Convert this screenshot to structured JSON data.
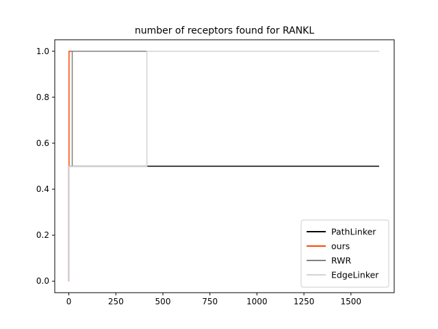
{
  "chart_data": {
    "type": "line",
    "title": "number of receptors found for RANKL",
    "xlabel": "",
    "ylabel": "",
    "xlim": [
      -75,
      1730
    ],
    "ylim": [
      -0.05,
      1.05
    ],
    "xticks": [
      0,
      250,
      500,
      750,
      1000,
      1250,
      1500
    ],
    "yticks": [
      0.0,
      0.2,
      0.4,
      0.6,
      0.8,
      1.0
    ],
    "xtick_labels": [
      "0",
      "250",
      "500",
      "750",
      "1000",
      "1250",
      "1500"
    ],
    "ytick_labels": [
      "0.0",
      "0.2",
      "0.4",
      "0.6",
      "0.8",
      "1.0"
    ],
    "grid": false,
    "legend_position": "lower-right",
    "series": [
      {
        "name": "PathLinker",
        "color": "#000000",
        "x": [
          0,
          0,
          1650
        ],
        "y": [
          0,
          0.5,
          0.5
        ]
      },
      {
        "name": "ours",
        "color": "#ff4500",
        "x": [
          0,
          0,
          1,
          1,
          1650
        ],
        "y": [
          0,
          0.5,
          0.5,
          1.0,
          1.0
        ]
      },
      {
        "name": "RWR",
        "color": "#808080",
        "x": [
          0,
          0,
          18,
          18,
          1650
        ],
        "y": [
          0,
          0.5,
          0.5,
          1.0,
          1.0
        ]
      },
      {
        "name": "EdgeLinker",
        "color": "#d3d3d3",
        "x": [
          0,
          0,
          415,
          415,
          1650
        ],
        "y": [
          0,
          0.5,
          0.5,
          1.0,
          1.0
        ]
      }
    ]
  }
}
